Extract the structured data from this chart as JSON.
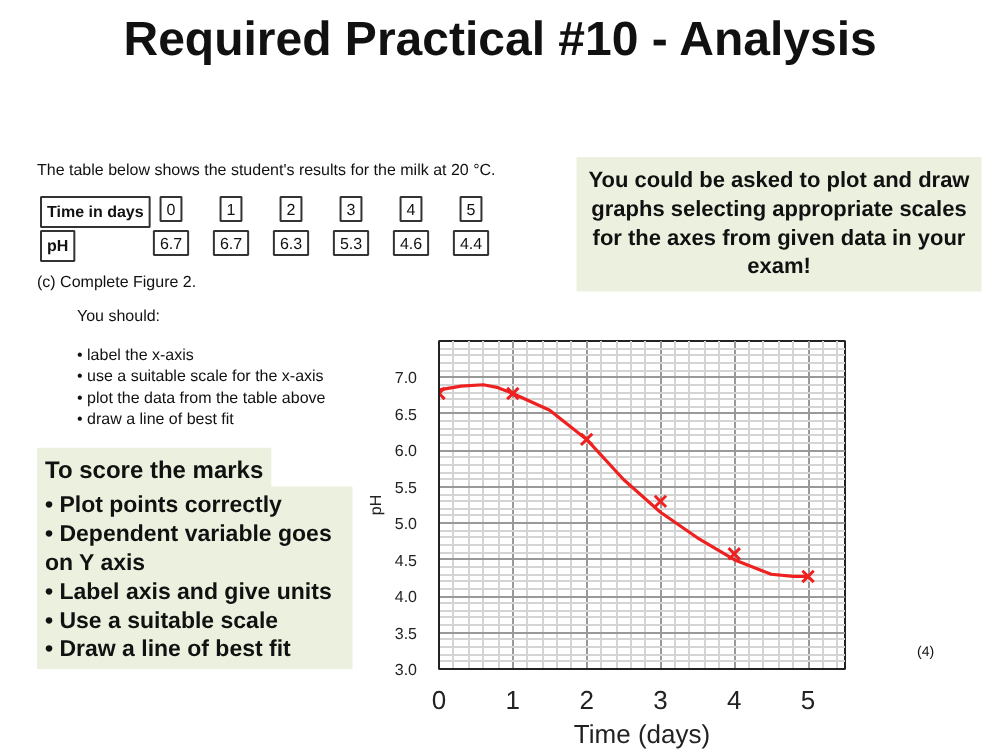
{
  "chart_data": {
    "type": "scatter",
    "title": "Required Practical #10 - Analysis",
    "xlabel": "Time (days)",
    "ylabel": "pH",
    "series": [
      {
        "color": "#ee2020",
        "x": [
          0,
          1,
          2,
          3,
          4,
          5
        ],
        "values": [
          6.78,
          6.78,
          6.15,
          5.3,
          4.58,
          4.27
        ]
      },
      {
        "type": "line",
        "color": "#ee2020",
        "marker": "none",
        "x": [
          0,
          0.3,
          0.6,
          0.8,
          1,
          1.5,
          2,
          2.5,
          3,
          3.5,
          4,
          4.5,
          4.8,
          5
        ],
        "values": [
          6.83,
          6.88,
          6.9,
          6.86,
          6.78,
          6.55,
          6.15,
          5.6,
          5.15,
          4.8,
          4.5,
          4.3,
          4.27,
          4.27
        ]
      }
    ],
    "marker": "cross",
    "xlim": [
      0,
      5.5
    ],
    "ylim": [
      3.0,
      7.5
    ],
    "xticks": [
      0,
      1,
      2,
      3,
      4,
      5
    ],
    "yticks": [
      {
        "value": 3,
        "label": "3.0"
      },
      3.5,
      {
        "value": 4,
        "label": "4.0"
      },
      4.5,
      {
        "value": 5,
        "label": "5.0"
      },
      5.5,
      {
        "value": 6,
        "label": "6.0"
      },
      6.5,
      {
        "value": 7,
        "label": "7.0"
      }
    ],
    "grid": true,
    "annotations": [
      "The table below shows the student's results for the milk at 20 °C.",
      "Time in days",
      "0",
      "1",
      "2",
      "3",
      "4",
      "5",
      "pH",
      "6.7",
      "6.7",
      "6.3",
      "5.3",
      "4.6",
      "4.4",
      "(c)    Complete Figure 2.",
      "You should:",
      "•        label the x-axis\n•        use a suitable scale for the x-axis\n•        plot the data from the table above\n•        draw a line of best fit",
      "To score the marks",
      "•   Plot points correctly\n•   Dependent variable goes\n     on Y axis\n•   Label axis and give units\n•   Use a suitable scale\n•   Draw a line of best fit",
      "You could be asked to plot and draw\ngraphs selecting appropriate scales\nfor the axes from given data in your\nexam!",
      "(4)"
    ]
  }
}
